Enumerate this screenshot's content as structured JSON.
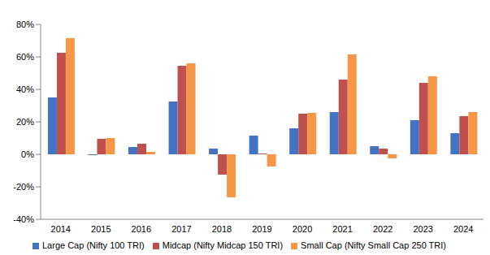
{
  "chart_data": {
    "type": "bar",
    "categories": [
      "2014",
      "2015",
      "2016",
      "2017",
      "2018",
      "2019",
      "2020",
      "2021",
      "2022",
      "2023",
      "2024"
    ],
    "series": [
      {
        "name": "Large Cap (Nifty 100 TRI)",
        "color": "#4472C4",
        "values": [
          35,
          -0.5,
          4.5,
          32.5,
          3.5,
          11.5,
          16,
          26,
          5,
          21,
          13
        ]
      },
      {
        "name": "Midcap (Nifty Midcap 150 TRI)",
        "color": "#C0504D",
        "values": [
          62.5,
          9.5,
          6.5,
          54.5,
          -12.5,
          0.5,
          25,
          46,
          3.5,
          44,
          23.5
        ]
      },
      {
        "name": "Small Cap (Nifty Small Cap 250 TRI)",
        "color": "#F79646",
        "values": [
          71.5,
          10,
          1.5,
          56,
          -26.5,
          -7.5,
          25.5,
          61.5,
          -2.5,
          48,
          26
        ]
      }
    ],
    "ylim": [
      -40,
      80
    ],
    "yticks": [
      {
        "value": -40,
        "label": "-40%"
      },
      {
        "value": -20,
        "label": "-20%"
      },
      {
        "value": 0,
        "label": "0%"
      },
      {
        "value": 20,
        "label": "20%"
      },
      {
        "value": 40,
        "label": "40%"
      },
      {
        "value": 60,
        "label": "60%"
      },
      {
        "value": 80,
        "label": "80%"
      }
    ],
    "grid": false,
    "legend": "bottom"
  }
}
